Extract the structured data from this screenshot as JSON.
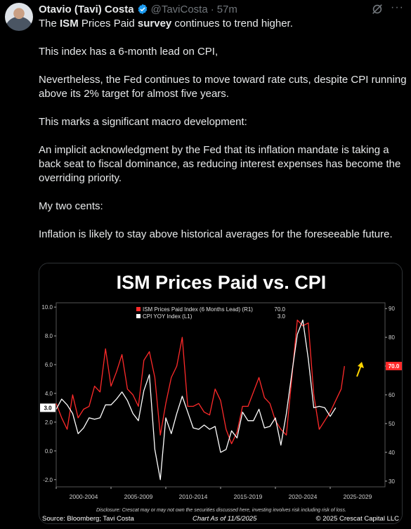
{
  "author": {
    "name": "Otavio (Tavi) Costa",
    "handle": "@TaviCosta",
    "time": "57m",
    "verified_color": "#1d9bf0"
  },
  "icons": {
    "more": "more-icon",
    "grok": "grok-icon",
    "verified": "verified-badge-icon"
  },
  "tweet": {
    "p1_pre": "The ",
    "p1_bold1": "ISM",
    "p1_mid": " Prices Paid ",
    "p1_bold2": "survey",
    "p1_post": " continues to trend higher.",
    "p2": "This index has a 6-month lead on CPI,",
    "p3": "Nevertheless, the Fed continues to move toward rate cuts, despite CPI running above its 2% target for almost five years.",
    "p4": "This marks a significant macro development:",
    "p5": "An implicit acknowledgment by the Fed that its inflation mandate is taking a back seat to fiscal dominance, as reducing interest expenses has become the overriding priority.",
    "p6": "My two cents:",
    "p7": "Inflation is likely to stay above historical averages for the foreseeable future."
  },
  "chart_data": {
    "type": "line",
    "title": "ISM Prices Paid vs. CPI",
    "x_tick_labels": [
      "2000-2004",
      "2005-2009",
      "2010-2014",
      "2015-2019",
      "2020-2024",
      "2025-2029"
    ],
    "x_range": [
      2000.0,
      2030.0
    ],
    "y_left_range": [
      -2.5,
      10.3
    ],
    "y_left_ticks": [
      -2.0,
      0.0,
      2.0,
      4.0,
      6.0,
      8.0,
      10.0
    ],
    "y_right_range": [
      28,
      92
    ],
    "y_right_ticks": [
      30,
      40,
      50,
      60,
      70,
      80,
      90
    ],
    "legend": {
      "placement": "top-left"
    },
    "series": [
      {
        "name": "ISM Prices Paid Index (6 Months Lead) (R1)",
        "last_value_label": "70.0",
        "axis": "right",
        "color": "#ff2a2a",
        "x": [
          2000.0,
          2000.5,
          2001.0,
          2001.5,
          2002.0,
          2002.5,
          2003.0,
          2003.5,
          2004.0,
          2004.5,
          2005.0,
          2005.5,
          2006.0,
          2006.5,
          2007.0,
          2007.5,
          2008.0,
          2008.5,
          2009.0,
          2009.5,
          2010.0,
          2010.5,
          2011.0,
          2011.5,
          2012.0,
          2012.5,
          2013.0,
          2013.5,
          2014.0,
          2014.5,
          2015.0,
          2015.5,
          2016.0,
          2016.5,
          2017.0,
          2017.5,
          2018.0,
          2018.5,
          2019.0,
          2019.5,
          2020.0,
          2020.5,
          2021.0,
          2021.5,
          2022.0,
          2022.5,
          2023.0,
          2023.5,
          2024.0,
          2024.5,
          2025.0,
          2025.5,
          2026.0,
          2026.3
        ],
        "y": [
          57,
          52,
          48,
          60,
          52,
          55,
          56,
          63,
          61,
          76,
          63,
          68,
          74,
          62,
          60,
          56,
          72,
          75,
          66,
          46,
          57,
          66,
          70,
          80,
          56,
          56,
          57,
          54,
          53,
          62,
          58,
          48,
          43,
          47,
          56,
          56,
          61,
          66,
          59,
          57,
          51,
          48,
          46,
          66,
          86,
          84,
          85,
          60,
          48,
          51,
          54,
          58,
          62,
          70
        ]
      },
      {
        "name": "CPI YOY Index (L1)",
        "last_value_label": "3.0",
        "axis": "left",
        "color": "#ffffff",
        "x": [
          2000.0,
          2000.5,
          2001.0,
          2001.5,
          2002.0,
          2002.5,
          2003.0,
          2003.5,
          2004.0,
          2004.5,
          2005.0,
          2005.5,
          2006.0,
          2006.5,
          2007.0,
          2007.5,
          2008.0,
          2008.5,
          2009.0,
          2009.5,
          2010.0,
          2010.5,
          2011.0,
          2011.5,
          2012.0,
          2012.5,
          2013.0,
          2013.5,
          2014.0,
          2014.5,
          2015.0,
          2015.5,
          2016.0,
          2016.5,
          2017.0,
          2017.5,
          2018.0,
          2018.5,
          2019.0,
          2019.5,
          2020.0,
          2020.5,
          2021.0,
          2021.5,
          2022.0,
          2022.5,
          2023.0,
          2023.5,
          2024.0,
          2024.5,
          2025.0,
          2025.5
        ],
        "y": [
          2.9,
          3.6,
          3.2,
          2.6,
          1.2,
          1.6,
          2.3,
          2.2,
          2.3,
          3.2,
          3.2,
          3.6,
          4.1,
          3.5,
          2.6,
          2.1,
          4.2,
          5.3,
          0.1,
          -2.0,
          2.3,
          1.2,
          2.6,
          3.8,
          2.7,
          1.6,
          1.5,
          1.8,
          1.5,
          1.7,
          -0.1,
          0.1,
          1.4,
          0.9,
          2.7,
          2.1,
          2.1,
          2.9,
          1.6,
          1.7,
          2.3,
          0.4,
          2.6,
          5.4,
          8.1,
          9.1,
          6.4,
          3.0,
          3.1,
          3.0,
          2.4,
          3.0
        ]
      }
    ]
  },
  "chart_labels": {
    "disclaimer": "Disclosure: Crescat may or may not own the securities discussed here, investing involves risk including risk of loss.",
    "source": "Source: Bloomberg; Tavi Costa",
    "chart_as_of": "Chart As of 11/5/2025",
    "copyright": "© 2025 Crescat Capital LLC",
    "arrow_color": "#ffd400"
  }
}
